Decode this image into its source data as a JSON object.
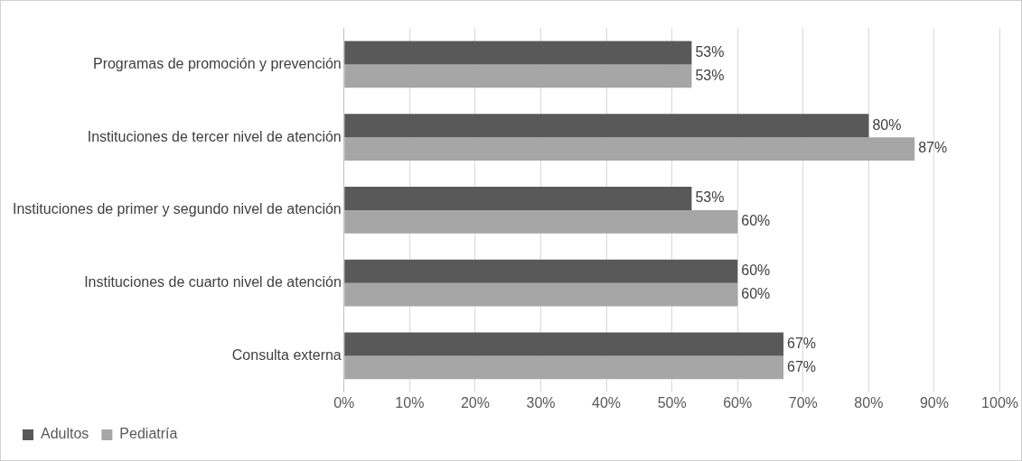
{
  "chart_data": {
    "type": "bar",
    "orientation": "horizontal",
    "categories": [
      "Programas de promoción y prevención",
      "Instituciones de tercer nivel de atención",
      "Instituciones de primer y segundo nivel de atención",
      "Instituciones de cuarto nivel de atención",
      "Consulta externa"
    ],
    "series": [
      {
        "name": "Adultos",
        "color": "#595959",
        "values": [
          53,
          80,
          53,
          60,
          67
        ],
        "value_labels": [
          "53%",
          "80%",
          "53%",
          "60%",
          "67%"
        ]
      },
      {
        "name": "Pediatría",
        "color": "#a6a6a6",
        "values": [
          53,
          87,
          60,
          60,
          67
        ],
        "value_labels": [
          "53%",
          "87%",
          "60%",
          "60%",
          "67%"
        ]
      }
    ],
    "xlim": [
      0,
      100
    ],
    "xticks": [
      {
        "value": 0,
        "label": "0%"
      },
      {
        "value": 10,
        "label": "10%"
      },
      {
        "value": 20,
        "label": "20%"
      },
      {
        "value": 30,
        "label": "30%"
      },
      {
        "value": 40,
        "label": "40%"
      },
      {
        "value": 50,
        "label": "50%"
      },
      {
        "value": 60,
        "label": "60%"
      },
      {
        "value": 70,
        "label": "70%"
      },
      {
        "value": 80,
        "label": "80%"
      },
      {
        "value": 90,
        "label": "90%"
      },
      {
        "value": 100,
        "label": "100%"
      }
    ],
    "grid": "x",
    "legend": "bottom left"
  }
}
